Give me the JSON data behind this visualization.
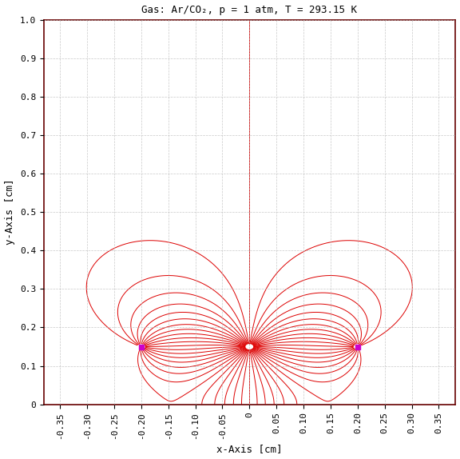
{
  "title": "Gas: Ar/CO₂, p = 1 atm, T = 293.15 K",
  "xlabel": "x-Axis [cm]",
  "ylabel": "y-Axis [cm]",
  "xlim": [
    -0.38,
    0.38
  ],
  "ylim": [
    0,
    1.0
  ],
  "xticks": [
    -0.35,
    -0.3,
    -0.25,
    -0.2,
    -0.15,
    -0.1,
    -0.05,
    0,
    0.05,
    0.1,
    0.15,
    0.2,
    0.25,
    0.3,
    0.35
  ],
  "yticks": [
    0,
    0.1,
    0.2,
    0.3,
    0.4,
    0.5,
    0.6,
    0.7,
    0.8,
    0.9,
    1.0
  ],
  "anode_wire": [
    0.0,
    0.15
  ],
  "cathode_wire1": [
    -0.2,
    0.15
  ],
  "cathode_wire2": [
    0.2,
    0.15
  ],
  "wire_color": "#cc00cc",
  "line_color": "#dd0000",
  "background": "#ffffff",
  "grid_color": "#bbbbbb",
  "figsize": [
    5.76,
    5.74
  ],
  "dpi": 100,
  "n_field_lines": 52
}
